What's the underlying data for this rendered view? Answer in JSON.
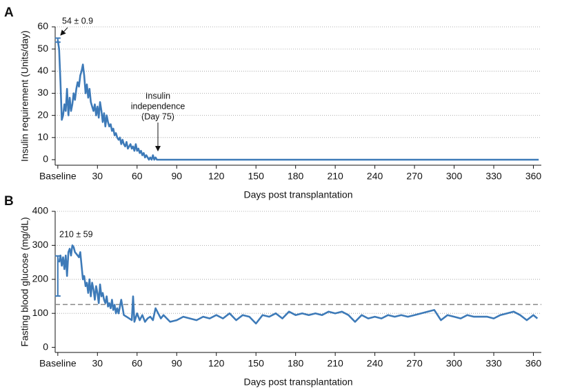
{
  "chart_data": [
    {
      "type": "line",
      "panel": "A",
      "ylabel": "Insulin requirement (Units/day)",
      "xlabel": "Days post transplantation",
      "color": "#3d7ab8",
      "grid": true,
      "xlim": [
        -2,
        366
      ],
      "ylim": [
        -2.5,
        60
      ],
      "xticks": [
        {
          "value": 0,
          "label": "Baseline"
        },
        30,
        60,
        90,
        120,
        150,
        180,
        210,
        240,
        270,
        300,
        330,
        360
      ],
      "yticks": [
        0,
        10,
        20,
        30,
        40,
        50,
        60
      ],
      "x": [
        0,
        1,
        2,
        3,
        4,
        5,
        6,
        7,
        8,
        9,
        10,
        11,
        12,
        13,
        14,
        15,
        16,
        17,
        18,
        19,
        20,
        21,
        22,
        23,
        24,
        25,
        26,
        27,
        28,
        29,
        30,
        31,
        32,
        33,
        34,
        35,
        36,
        37,
        38,
        39,
        40,
        41,
        42,
        43,
        44,
        45,
        46,
        47,
        48,
        49,
        50,
        51,
        52,
        53,
        54,
        55,
        56,
        57,
        58,
        59,
        60,
        61,
        62,
        63,
        64,
        65,
        66,
        67,
        68,
        69,
        70,
        71,
        72,
        73,
        74,
        75,
        364
      ],
      "values": [
        54,
        50,
        35,
        18,
        20,
        25,
        22,
        32,
        20,
        28,
        22,
        25,
        30,
        27,
        32,
        35,
        33,
        38,
        40,
        43,
        38,
        30,
        34,
        28,
        32,
        26,
        24,
        22,
        25,
        20,
        24,
        19,
        26,
        22,
        17,
        21,
        15,
        20,
        17,
        15,
        16,
        13,
        14,
        11,
        12,
        10,
        9,
        10,
        7,
        9,
        7,
        6,
        8,
        5,
        6,
        7,
        5,
        6,
        4,
        7,
        4,
        5,
        3,
        4,
        2,
        3,
        1,
        2,
        1,
        0,
        1,
        0,
        2,
        0,
        1,
        0,
        0
      ],
      "error_bar": {
        "x": 0,
        "value": 54,
        "error": 0.9,
        "label": "54 ± 0.9"
      },
      "annotation": {
        "lines": [
          "Insulin",
          "independence",
          "(Day 75)"
        ]
      }
    },
    {
      "type": "line",
      "panel": "B",
      "ylabel": "Fasting blood glucose (mg/dL)",
      "xlabel": "Days post transplantation",
      "color": "#3d7ab8",
      "grid": true,
      "xlim": [
        -2,
        366
      ],
      "ylim": [
        -15,
        400
      ],
      "xticks": [
        {
          "value": 0,
          "label": "Baseline"
        },
        30,
        60,
        90,
        120,
        150,
        180,
        210,
        240,
        270,
        300,
        330,
        360
      ],
      "yticks": [
        0,
        100,
        200,
        300,
        400
      ],
      "reference_line": 126,
      "x": [
        1,
        2,
        3,
        4,
        5,
        6,
        7,
        8,
        9,
        10,
        11,
        12,
        13,
        14,
        15,
        16,
        17,
        18,
        19,
        20,
        21,
        22,
        23,
        24,
        25,
        26,
        27,
        28,
        29,
        30,
        31,
        32,
        33,
        34,
        35,
        36,
        37,
        38,
        39,
        40,
        41,
        42,
        43,
        44,
        45,
        46,
        48,
        50,
        52,
        54,
        56,
        57,
        58,
        60,
        62,
        64,
        66,
        68,
        70,
        72,
        74,
        76,
        78,
        80,
        85,
        90,
        95,
        100,
        105,
        110,
        115,
        120,
        125,
        130,
        135,
        140,
        145,
        150,
        155,
        160,
        165,
        170,
        175,
        180,
        185,
        190,
        195,
        200,
        205,
        210,
        215,
        220,
        225,
        230,
        235,
        240,
        245,
        250,
        255,
        260,
        265,
        270,
        275,
        280,
        285,
        290,
        295,
        300,
        305,
        310,
        315,
        320,
        325,
        330,
        335,
        340,
        345,
        350,
        355,
        360,
        363
      ],
      "values": [
        250,
        270,
        240,
        265,
        230,
        270,
        210,
        280,
        290,
        270,
        300,
        295,
        280,
        275,
        270,
        265,
        280,
        240,
        200,
        210,
        180,
        190,
        160,
        200,
        150,
        190,
        170,
        140,
        180,
        160,
        130,
        185,
        150,
        160,
        140,
        130,
        150,
        120,
        130,
        115,
        140,
        110,
        125,
        100,
        115,
        100,
        140,
        95,
        90,
        85,
        80,
        150,
        75,
        100,
        80,
        95,
        75,
        85,
        90,
        80,
        115,
        100,
        85,
        95,
        75,
        80,
        90,
        85,
        80,
        90,
        85,
        95,
        85,
        100,
        80,
        95,
        90,
        70,
        95,
        90,
        100,
        85,
        105,
        95,
        100,
        95,
        100,
        95,
        105,
        100,
        105,
        95,
        75,
        95,
        85,
        90,
        85,
        95,
        90,
        95,
        90,
        95,
        100,
        105,
        110,
        80,
        95,
        90,
        85,
        95,
        90,
        90,
        90,
        85,
        95,
        100,
        105,
        95,
        80,
        95,
        85
      ],
      "error_bar": {
        "x": 0,
        "value": 210,
        "error": 59,
        "label": "210 ± 59"
      }
    }
  ]
}
